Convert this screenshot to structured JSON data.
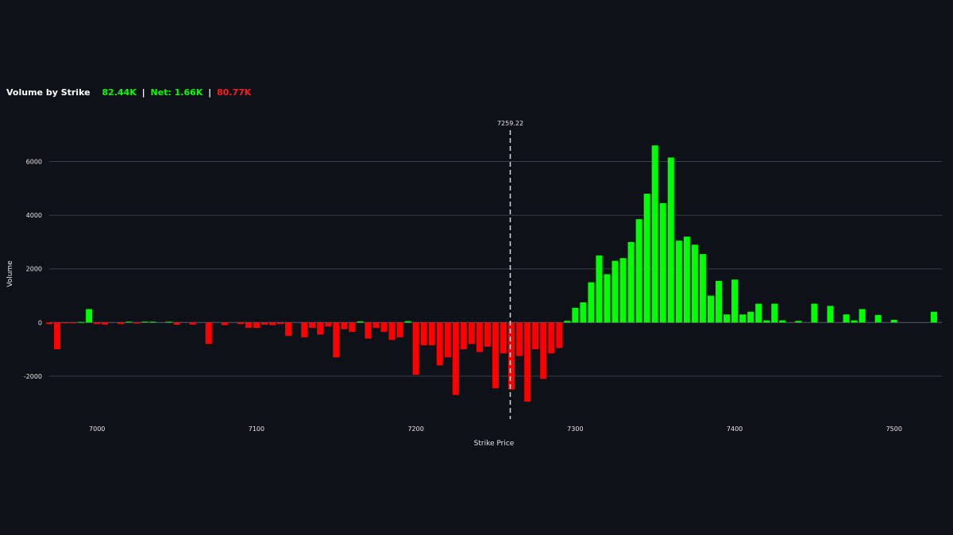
{
  "header": {
    "title": "Volume by Strike",
    "call_volume": "82.44K",
    "separator": "|",
    "net": "Net: 1.66K",
    "put_volume": "80.77K"
  },
  "colors": {
    "background": "#0e1117",
    "positive": "#00ff00",
    "negative": "#ff0000",
    "grid": "#3a3f4b",
    "marker_line": "#d9d9d9"
  },
  "chart_data": {
    "type": "bar",
    "title": "Volume by Strike",
    "xlabel": "Strike Price",
    "ylabel": "Volume",
    "xlim": [
      6970,
      7530
    ],
    "ylim": [
      -3600,
      7050
    ],
    "x_ticks": [
      7000,
      7100,
      7200,
      7300,
      7400,
      7500
    ],
    "y_ticks": [
      -2000,
      0,
      2000,
      4000,
      6000
    ],
    "grid": true,
    "bar_width": 4,
    "marker": {
      "x": 7259.22,
      "label": "7259.22"
    },
    "x": [
      6970,
      6975,
      6980,
      6985,
      6990,
      6995,
      7000,
      7005,
      7010,
      7015,
      7020,
      7025,
      7030,
      7035,
      7040,
      7045,
      7050,
      7055,
      7060,
      7065,
      7070,
      7075,
      7080,
      7085,
      7090,
      7095,
      7100,
      7105,
      7110,
      7115,
      7120,
      7125,
      7130,
      7135,
      7140,
      7145,
      7150,
      7155,
      7160,
      7165,
      7170,
      7175,
      7180,
      7185,
      7190,
      7195,
      7200,
      7205,
      7210,
      7215,
      7220,
      7225,
      7230,
      7235,
      7240,
      7245,
      7250,
      7255,
      7260,
      7265,
      7270,
      7275,
      7280,
      7285,
      7290,
      7295,
      7300,
      7305,
      7310,
      7315,
      7320,
      7325,
      7330,
      7335,
      7340,
      7345,
      7350,
      7355,
      7360,
      7365,
      7370,
      7375,
      7380,
      7385,
      7390,
      7395,
      7400,
      7405,
      7410,
      7415,
      7420,
      7425,
      7430,
      7435,
      7440,
      7445,
      7450,
      7455,
      7460,
      7465,
      7470,
      7475,
      7480,
      7485,
      7490,
      7495,
      7500,
      7505,
      7510,
      7515,
      7520,
      7525
    ],
    "values": [
      -60,
      -1000,
      -30,
      -20,
      20,
      500,
      -60,
      -80,
      0,
      -60,
      30,
      -40,
      30,
      30,
      0,
      30,
      -80,
      0,
      -80,
      0,
      -800,
      0,
      -100,
      0,
      -60,
      -200,
      -200,
      -80,
      -100,
      -60,
      -500,
      0,
      -550,
      -200,
      -450,
      -150,
      -1300,
      -250,
      -350,
      40,
      -600,
      -200,
      -350,
      -650,
      -550,
      50,
      -1950,
      -850,
      -850,
      -1600,
      -1300,
      -2700,
      -1000,
      -800,
      -1100,
      -900,
      -2450,
      -1150,
      -2500,
      -1250,
      -2950,
      -1000,
      -2100,
      -1150,
      -950,
      60,
      550,
      750,
      1500,
      2500,
      1800,
      2300,
      2400,
      3000,
      3850,
      4800,
      6600,
      4450,
      6150,
      3050,
      3200,
      2900,
      2550,
      1000,
      1550,
      300,
      1600,
      300,
      400,
      700,
      80,
      700,
      80,
      0,
      60,
      0,
      700,
      0,
      620,
      0,
      300,
      80,
      500,
      0,
      280,
      0,
      100,
      0,
      0,
      0,
      0,
      400
    ]
  }
}
